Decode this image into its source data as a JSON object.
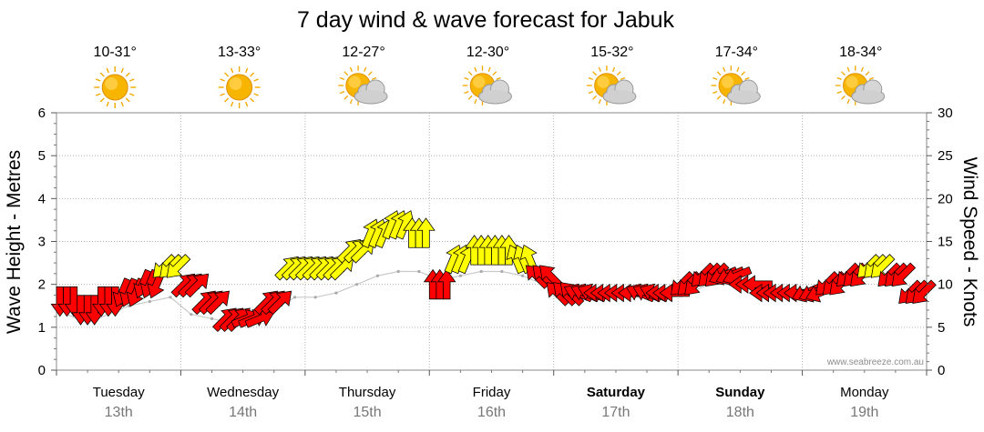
{
  "chart_data": {
    "type": "line",
    "title": "7 day wind & wave forecast for Jabuk",
    "ylabel_left": "Wave Height - Metres",
    "ylabel_right": "Wind Speed - Knots",
    "ylim_left": [
      0,
      6
    ],
    "ylim_right": [
      0,
      30
    ],
    "yticks_left": [
      "0",
      "1",
      "2",
      "3",
      "4",
      "5",
      "6"
    ],
    "yticks_right": [
      "0",
      "5",
      "10",
      "15",
      "20",
      "25",
      "30"
    ],
    "grid": true,
    "credit": "www.seabreeze.com.au",
    "days": [
      {
        "day": "Tuesday",
        "date": "13th",
        "temp": "10-31°",
        "icon": "sun-icon",
        "weekend": false
      },
      {
        "day": "Wednesday",
        "date": "14th",
        "temp": "13-33°",
        "icon": "sun-icon",
        "weekend": false
      },
      {
        "day": "Thursday",
        "date": "15th",
        "temp": "12-27°",
        "icon": "partly-cloudy-icon",
        "weekend": false
      },
      {
        "day": "Friday",
        "date": "16th",
        "temp": "12-30°",
        "icon": "partly-cloudy-icon",
        "weekend": false
      },
      {
        "day": "Saturday",
        "date": "17th",
        "temp": "15-32°",
        "icon": "partly-cloudy-icon",
        "weekend": true
      },
      {
        "day": "Sunday",
        "date": "18th",
        "temp": "17-34°",
        "icon": "partly-cloudy-icon",
        "weekend": true
      },
      {
        "day": "Monday",
        "date": "19th",
        "temp": "18-34°",
        "icon": "partly-cloudy-icon",
        "weekend": false
      }
    ],
    "wind_series": {
      "name": "Wind Speed",
      "unit": "knots",
      "interval_hours": 4,
      "colors": {
        "strong": "#ffff00",
        "moderate": "#ff0000"
      },
      "points": [
        {
          "knots": 8,
          "dir": "N"
        },
        {
          "knots": 7,
          "dir": "N"
        },
        {
          "knots": 8,
          "dir": "N"
        },
        {
          "knots": 9,
          "dir": "NNE"
        },
        {
          "knots": 10,
          "dir": "NNE"
        },
        {
          "knots": 12,
          "dir": "NE"
        },
        {
          "knots": 10,
          "dir": "SW"
        },
        {
          "knots": 8,
          "dir": "SW"
        },
        {
          "knots": 6,
          "dir": "SW"
        },
        {
          "knots": 6,
          "dir": "WSW"
        },
        {
          "knots": 8,
          "dir": "SW"
        },
        {
          "knots": 12,
          "dir": "SW"
        },
        {
          "knots": 12,
          "dir": "SW"
        },
        {
          "knots": 12,
          "dir": "SW"
        },
        {
          "knots": 14,
          "dir": "SW"
        },
        {
          "knots": 16,
          "dir": "SSW"
        },
        {
          "knots": 17,
          "dir": "SSW"
        },
        {
          "knots": 16,
          "dir": "S"
        },
        {
          "knots": 10,
          "dir": "S"
        },
        {
          "knots": 13,
          "dir": "SSW"
        },
        {
          "knots": 14,
          "dir": "S"
        },
        {
          "knots": 14,
          "dir": "S"
        },
        {
          "knots": 13,
          "dir": "SSE"
        },
        {
          "knots": 11,
          "dir": "SE"
        },
        {
          "knots": 9,
          "dir": "SE"
        },
        {
          "knots": 9,
          "dir": "ESE"
        },
        {
          "knots": 9,
          "dir": "E"
        },
        {
          "knots": 9,
          "dir": "E"
        },
        {
          "knots": 9,
          "dir": "ESE"
        },
        {
          "knots": 9,
          "dir": "E"
        },
        {
          "knots": 10,
          "dir": "NE"
        },
        {
          "knots": 11,
          "dir": "NE"
        },
        {
          "knots": 11,
          "dir": "ENE"
        },
        {
          "knots": 10,
          "dir": "E"
        },
        {
          "knots": 9,
          "dir": "E"
        },
        {
          "knots": 9,
          "dir": "E"
        },
        {
          "knots": 9,
          "dir": "ENE"
        },
        {
          "knots": 10,
          "dir": "NE"
        },
        {
          "knots": 11,
          "dir": "NE"
        },
        {
          "knots": 12,
          "dir": "NE"
        },
        {
          "knots": 11,
          "dir": "NE"
        },
        {
          "knots": 9,
          "dir": "NE"
        }
      ]
    },
    "wave_series": {
      "name": "Wave Height",
      "unit": "metres",
      "values": [
        1.3,
        1.1,
        1.3,
        1.5,
        1.6,
        1.7,
        1.3,
        1.2,
        1.1,
        1.2,
        1.4,
        1.7,
        1.7,
        1.8,
        2.0,
        2.2,
        2.3,
        2.3,
        2.1,
        2.2,
        2.3,
        2.3,
        2.2,
        2.0,
        1.8,
        1.7,
        1.7,
        1.7,
        1.7,
        1.7,
        1.8,
        2.0,
        2.0,
        1.9,
        1.8,
        1.8,
        1.8,
        1.9,
        2.1,
        2.2,
        2.1,
        1.9
      ]
    }
  }
}
